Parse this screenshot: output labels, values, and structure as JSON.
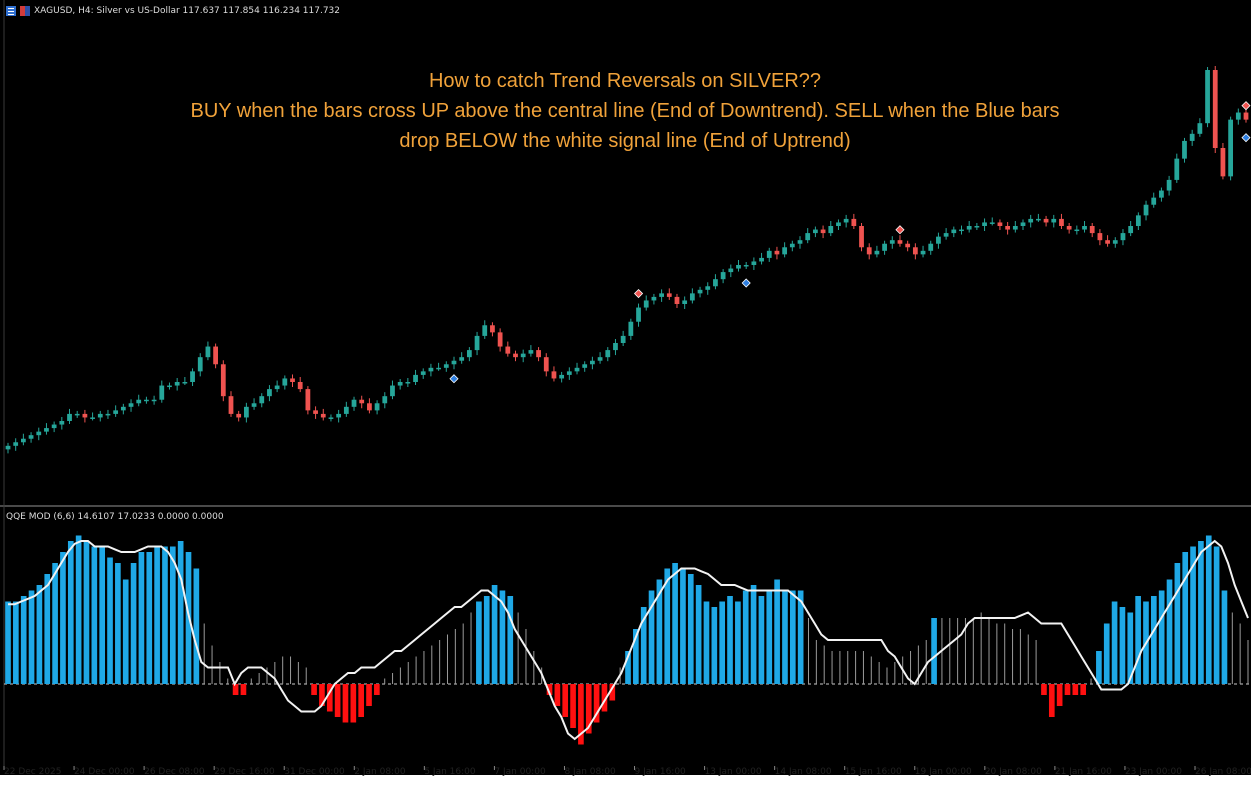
{
  "window": {
    "symbol_line": "XAGUSD, H4:  Silver vs US-Dollar  117.637 117.854 116.234 117.732"
  },
  "annotation": {
    "line1": "How to catch Trend Reversals on SILVER??",
    "line2": "BUY when the bars cross UP above the central line (End of Downtrend). SELL when the Blue bars",
    "line3": "drop BELOW the white signal line (End of Uptrend)"
  },
  "indicator": {
    "label": "QQE MOD (6,6) 14.6107 17.0233 0.0000 0.0000"
  },
  "colors": {
    "background": "#000000",
    "bull_candle": "#26a69a",
    "bear_candle": "#ef5350",
    "qqe_blue": "#1fa8e6",
    "qqe_red": "#ff1010",
    "qqe_gray": "#9a9a9a",
    "signal_line": "#f2f2f2",
    "zero_line": "#cccccc",
    "sell_arrow": "#ef5350",
    "buy_arrow": "#2f7fe0",
    "annotation_text": "#f0a23a"
  },
  "chart_data": [
    {
      "type": "candlestick",
      "title": "XAGUSD, H4: Silver vs US-Dollar",
      "ohlc_last": {
        "open": 117.637,
        "high": 117.854,
        "low": 116.234,
        "close": 117.732
      },
      "shape_note": "relative price path left to right (0 = low, 100 = high)",
      "close_path": [
        4,
        5,
        6,
        7,
        8,
        9,
        10,
        11,
        13,
        13,
        12,
        12,
        13,
        13,
        14,
        15,
        16,
        17,
        17,
        17,
        21,
        21,
        22,
        22,
        25,
        29,
        32,
        27,
        18,
        13,
        12,
        15,
        16,
        18,
        20,
        21,
        23,
        22,
        20,
        14,
        13,
        12,
        12,
        13,
        15,
        17,
        16,
        14,
        16,
        18,
        21,
        22,
        22,
        24,
        25,
        26,
        26,
        27,
        28,
        29,
        31,
        35,
        38,
        36,
        32,
        30,
        29,
        30,
        31,
        29,
        25,
        23,
        24,
        25,
        26,
        27,
        28,
        29,
        31,
        33,
        35,
        39,
        43,
        45,
        46,
        47,
        46,
        44,
        45,
        47,
        48,
        49,
        51,
        53,
        54,
        55,
        55,
        56,
        57,
        59,
        58,
        60,
        61,
        62,
        64,
        65,
        64,
        66,
        67,
        68,
        66,
        60,
        58,
        59,
        61,
        62,
        61,
        60,
        58,
        59,
        61,
        63,
        64,
        65,
        65,
        66,
        66,
        67,
        67,
        66,
        65,
        66,
        67,
        68,
        68,
        67,
        68,
        66,
        65,
        65,
        66,
        64,
        62,
        61,
        62,
        64,
        66,
        69,
        72,
        74,
        76,
        79,
        85,
        90,
        92,
        95,
        110,
        88,
        80,
        96,
        98,
        96
      ],
      "markers": [
        {
          "kind": "buy",
          "candle": 58,
          "position": "below"
        },
        {
          "kind": "sell",
          "candle": 82,
          "position": "above"
        },
        {
          "kind": "buy",
          "candle": 96,
          "position": "below"
        },
        {
          "kind": "sell",
          "candle": 116,
          "position": "above"
        },
        {
          "kind": "buy",
          "candle": 181,
          "position": "below"
        },
        {
          "kind": "sell",
          "candle": 201,
          "position": "above"
        }
      ]
    },
    {
      "type": "bar",
      "title": "QQE MOD (6,6)",
      "values_legend": [
        14.6107,
        17.0233,
        0.0,
        0.0
      ],
      "x_labels": [
        "22 Dec 2025",
        "24 Dec 00:00",
        "26 Dec 08:00",
        "29 Dec 16:00",
        "31 Dec 00:00",
        "2 Jan 08:00",
        "5 Jan 16:00",
        "7 Jan 00:00",
        "8 Jan 08:00",
        "9 Jan 16:00",
        "13 Jan 00:00",
        "14 Jan 08:00",
        "15 Jan 16:00",
        "19 Jan 00:00",
        "20 Jan 08:00",
        "21 Jan 16:00",
        "23 Jan 00:00",
        "26 Jan 08:00"
      ],
      "histogram": [
        {
          "v": 15,
          "c": "blue"
        },
        {
          "v": 15,
          "c": "blue"
        },
        {
          "v": 16,
          "c": "blue"
        },
        {
          "v": 17,
          "c": "blue"
        },
        {
          "v": 18,
          "c": "blue"
        },
        {
          "v": 20,
          "c": "blue"
        },
        {
          "v": 22,
          "c": "blue"
        },
        {
          "v": 24,
          "c": "blue"
        },
        {
          "v": 26,
          "c": "blue"
        },
        {
          "v": 27,
          "c": "blue"
        },
        {
          "v": 26,
          "c": "blue"
        },
        {
          "v": 25,
          "c": "blue"
        },
        {
          "v": 25,
          "c": "blue"
        },
        {
          "v": 23,
          "c": "blue"
        },
        {
          "v": 22,
          "c": "blue"
        },
        {
          "v": 19,
          "c": "blue"
        },
        {
          "v": 22,
          "c": "blue"
        },
        {
          "v": 24,
          "c": "blue"
        },
        {
          "v": 24,
          "c": "blue"
        },
        {
          "v": 25,
          "c": "blue"
        },
        {
          "v": 25,
          "c": "blue"
        },
        {
          "v": 25,
          "c": "blue"
        },
        {
          "v": 26,
          "c": "blue"
        },
        {
          "v": 24,
          "c": "blue"
        },
        {
          "v": 21,
          "c": "blue"
        },
        {
          "v": 11,
          "c": "gray"
        },
        {
          "v": 7,
          "c": "gray"
        },
        {
          "v": 4,
          "c": "gray"
        },
        {
          "v": 1,
          "c": "gray"
        },
        {
          "v": -2,
          "c": "red"
        },
        {
          "v": -2,
          "c": "red"
        },
        {
          "v": 1,
          "c": "gray"
        },
        {
          "v": 2,
          "c": "gray"
        },
        {
          "v": 3,
          "c": "gray"
        },
        {
          "v": 4,
          "c": "gray"
        },
        {
          "v": 5,
          "c": "gray"
        },
        {
          "v": 5,
          "c": "gray"
        },
        {
          "v": 4,
          "c": "gray"
        },
        {
          "v": 3,
          "c": "gray"
        },
        {
          "v": -2,
          "c": "red"
        },
        {
          "v": -4,
          "c": "red"
        },
        {
          "v": -5,
          "c": "red"
        },
        {
          "v": -6,
          "c": "red"
        },
        {
          "v": -7,
          "c": "red"
        },
        {
          "v": -7,
          "c": "red"
        },
        {
          "v": -6,
          "c": "red"
        },
        {
          "v": -4,
          "c": "red"
        },
        {
          "v": -2,
          "c": "red"
        },
        {
          "v": 1,
          "c": "gray"
        },
        {
          "v": 2,
          "c": "gray"
        },
        {
          "v": 3,
          "c": "gray"
        },
        {
          "v": 4,
          "c": "gray"
        },
        {
          "v": 5,
          "c": "gray"
        },
        {
          "v": 6,
          "c": "gray"
        },
        {
          "v": 7,
          "c": "gray"
        },
        {
          "v": 8,
          "c": "gray"
        },
        {
          "v": 9,
          "c": "gray"
        },
        {
          "v": 10,
          "c": "gray"
        },
        {
          "v": 11,
          "c": "gray"
        },
        {
          "v": 13,
          "c": "gray"
        },
        {
          "v": 15,
          "c": "blue"
        },
        {
          "v": 16,
          "c": "blue"
        },
        {
          "v": 18,
          "c": "blue"
        },
        {
          "v": 17,
          "c": "blue"
        },
        {
          "v": 16,
          "c": "blue"
        },
        {
          "v": 13,
          "c": "gray"
        },
        {
          "v": 10,
          "c": "gray"
        },
        {
          "v": 6,
          "c": "gray"
        },
        {
          "v": 3,
          "c": "gray"
        },
        {
          "v": -2,
          "c": "red"
        },
        {
          "v": -4,
          "c": "red"
        },
        {
          "v": -6,
          "c": "red"
        },
        {
          "v": -8,
          "c": "red"
        },
        {
          "v": -11,
          "c": "red"
        },
        {
          "v": -9,
          "c": "red"
        },
        {
          "v": -7,
          "c": "red"
        },
        {
          "v": -5,
          "c": "red"
        },
        {
          "v": -3,
          "c": "red"
        },
        {
          "v": 3,
          "c": "gray"
        },
        {
          "v": 6,
          "c": "blue"
        },
        {
          "v": 10,
          "c": "blue"
        },
        {
          "v": 14,
          "c": "blue"
        },
        {
          "v": 17,
          "c": "blue"
        },
        {
          "v": 19,
          "c": "blue"
        },
        {
          "v": 21,
          "c": "blue"
        },
        {
          "v": 22,
          "c": "blue"
        },
        {
          "v": 21,
          "c": "blue"
        },
        {
          "v": 20,
          "c": "blue"
        },
        {
          "v": 18,
          "c": "blue"
        },
        {
          "v": 15,
          "c": "blue"
        },
        {
          "v": 14,
          "c": "blue"
        },
        {
          "v": 15,
          "c": "blue"
        },
        {
          "v": 16,
          "c": "blue"
        },
        {
          "v": 15,
          "c": "blue"
        },
        {
          "v": 17,
          "c": "blue"
        },
        {
          "v": 18,
          "c": "blue"
        },
        {
          "v": 16,
          "c": "blue"
        },
        {
          "v": 17,
          "c": "blue"
        },
        {
          "v": 19,
          "c": "blue"
        },
        {
          "v": 17,
          "c": "blue"
        },
        {
          "v": 17,
          "c": "blue"
        },
        {
          "v": 17,
          "c": "blue"
        },
        {
          "v": 12,
          "c": "gray"
        },
        {
          "v": 8,
          "c": "gray"
        },
        {
          "v": 7,
          "c": "gray"
        },
        {
          "v": 6,
          "c": "gray"
        },
        {
          "v": 6,
          "c": "gray"
        },
        {
          "v": 6,
          "c": "gray"
        },
        {
          "v": 6,
          "c": "gray"
        },
        {
          "v": 6,
          "c": "gray"
        },
        {
          "v": 5,
          "c": "gray"
        },
        {
          "v": 4,
          "c": "gray"
        },
        {
          "v": 3,
          "c": "gray"
        },
        {
          "v": 4,
          "c": "gray"
        },
        {
          "v": 5,
          "c": "gray"
        },
        {
          "v": 6,
          "c": "gray"
        },
        {
          "v": 7,
          "c": "gray"
        },
        {
          "v": 8,
          "c": "gray"
        },
        {
          "v": 12,
          "c": "blue"
        },
        {
          "v": 12,
          "c": "gray"
        },
        {
          "v": 12,
          "c": "gray"
        },
        {
          "v": 12,
          "c": "gray"
        },
        {
          "v": 12,
          "c": "gray"
        },
        {
          "v": 12,
          "c": "gray"
        },
        {
          "v": 13,
          "c": "gray"
        },
        {
          "v": 12,
          "c": "gray"
        },
        {
          "v": 11,
          "c": "gray"
        },
        {
          "v": 11,
          "c": "gray"
        },
        {
          "v": 10,
          "c": "gray"
        },
        {
          "v": 10,
          "c": "gray"
        },
        {
          "v": 9,
          "c": "gray"
        },
        {
          "v": 8,
          "c": "gray"
        },
        {
          "v": -2,
          "c": "red"
        },
        {
          "v": -6,
          "c": "red"
        },
        {
          "v": -4,
          "c": "red"
        },
        {
          "v": -2,
          "c": "red"
        },
        {
          "v": -2,
          "c": "red"
        },
        {
          "v": -2,
          "c": "red"
        },
        {
          "v": 1,
          "c": "gray"
        },
        {
          "v": 6,
          "c": "blue"
        },
        {
          "v": 11,
          "c": "blue"
        },
        {
          "v": 15,
          "c": "blue"
        },
        {
          "v": 14,
          "c": "blue"
        },
        {
          "v": 13,
          "c": "blue"
        },
        {
          "v": 16,
          "c": "blue"
        },
        {
          "v": 15,
          "c": "blue"
        },
        {
          "v": 16,
          "c": "blue"
        },
        {
          "v": 17,
          "c": "blue"
        },
        {
          "v": 19,
          "c": "blue"
        },
        {
          "v": 22,
          "c": "blue"
        },
        {
          "v": 24,
          "c": "blue"
        },
        {
          "v": 25,
          "c": "blue"
        },
        {
          "v": 26,
          "c": "blue"
        },
        {
          "v": 27,
          "c": "blue"
        },
        {
          "v": 25,
          "c": "blue"
        },
        {
          "v": 17,
          "c": "blue"
        },
        {
          "v": 13,
          "c": "gray"
        },
        {
          "v": 11,
          "c": "gray"
        },
        {
          "v": 8,
          "c": "gray"
        }
      ],
      "signal_line": [
        14.5,
        14.5,
        15,
        15.5,
        16,
        17,
        18,
        20,
        22,
        24,
        25.5,
        26,
        26,
        25,
        25,
        25,
        24.5,
        24,
        24,
        24,
        24.5,
        25,
        25,
        25,
        24,
        22,
        19,
        13,
        8,
        4,
        3,
        3,
        3,
        3,
        0,
        2,
        3,
        3,
        3,
        2,
        1,
        -1,
        -3,
        -4,
        -5,
        -5,
        -5,
        -4,
        -2,
        0,
        1,
        2,
        2,
        3,
        3,
        3,
        4,
        5,
        6,
        6,
        7,
        8,
        9,
        10,
        11,
        12,
        13,
        14,
        14,
        15,
        16,
        17,
        17,
        16,
        15,
        13,
        10,
        8,
        6,
        4,
        2,
        -1,
        -4,
        -6,
        -9,
        -10,
        -9,
        -8,
        -6,
        -4,
        -2,
        0,
        2,
        5,
        8,
        11,
        13,
        15,
        17,
        19,
        20,
        21,
        21,
        21,
        20.5,
        20,
        19,
        18,
        18,
        18,
        17.5,
        17,
        17,
        17,
        17,
        17,
        17,
        17,
        16,
        15,
        13,
        11,
        9,
        8,
        8,
        8,
        8,
        8,
        8,
        8,
        8,
        8,
        6,
        5,
        3,
        1,
        0,
        2,
        4,
        5,
        6,
        7,
        8,
        9,
        11,
        12,
        12,
        12,
        12,
        12,
        12,
        12,
        12.5,
        13,
        12,
        11,
        11,
        11,
        11,
        9,
        7,
        5,
        3,
        1,
        -1,
        -1,
        -1,
        -1,
        0,
        3,
        6,
        8,
        10,
        12,
        14,
        16,
        18,
        20,
        22,
        24,
        25,
        26,
        25,
        22,
        18,
        15,
        12
      ],
      "zero_line": 0
    }
  ]
}
